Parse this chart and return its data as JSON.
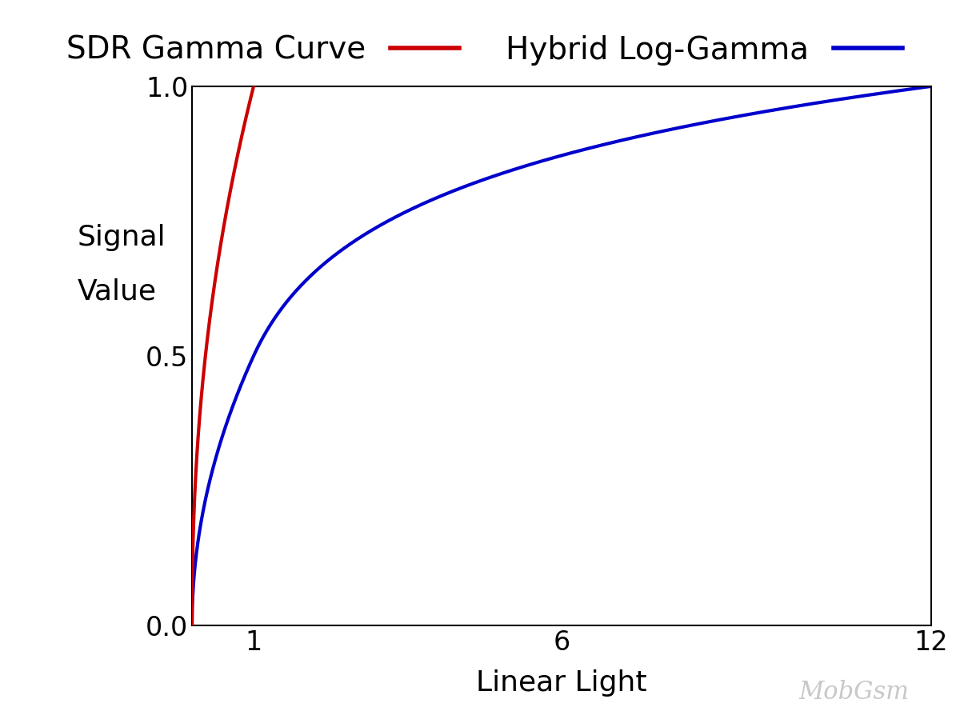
{
  "legend_labels": [
    "SDR Gamma Curve",
    "Hybrid Log-Gamma"
  ],
  "legend_colors": [
    "#cc0000",
    "#0000cc"
  ],
  "ylabel_line1": "Signal",
  "ylabel_line2": "Value",
  "xlabel": "Linear Light",
  "yticks": [
    0,
    0.5,
    1
  ],
  "xticks": [
    1,
    6,
    12
  ],
  "xlim": [
    0,
    12
  ],
  "ylim": [
    0,
    1
  ],
  "watermark": "MobGsm",
  "watermark_color": "#c8c8c8",
  "background_color": "#ffffff",
  "line_width": 3.0,
  "sdr_color": "#cc0000",
  "hlg_color": "#0000cc",
  "tick_fontsize": 24,
  "label_fontsize": 26,
  "legend_fontsize": 28
}
